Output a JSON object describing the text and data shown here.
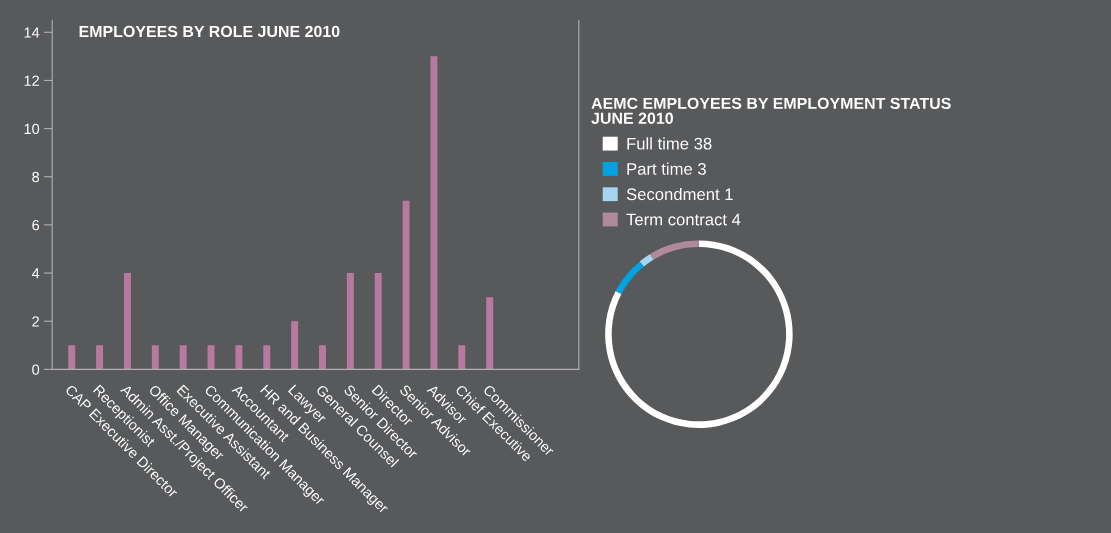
{
  "chart_data": [
    {
      "type": "bar",
      "title": "EMPLOYEES BY ROLE JUNE 2010",
      "categories": [
        "CAP Executive Director",
        "Receptionist",
        "Admin Asst./Project Officer",
        "Office Manager",
        "Executive Assistant",
        "Communication Manager",
        "Accountant",
        "HR and Business Manager",
        "Lawyer",
        "General Counsel",
        "Senior Director",
        "Director",
        "Senior Advisor",
        "Advisor",
        "Chief Executive",
        "Commissioner"
      ],
      "values": [
        1,
        1,
        4,
        1,
        1,
        1,
        1,
        1,
        2,
        1,
        4,
        4,
        7,
        13,
        1,
        3
      ],
      "color": "#b8799e",
      "ylim": [
        0,
        14.5
      ],
      "yticks": [
        0,
        2,
        4,
        6,
        8,
        10,
        12,
        14
      ],
      "grid": false
    },
    {
      "type": "donut",
      "title": "AEMC EMPLOYEES BY EMPLOYMENT STATUS\nJUNE 2010",
      "categories": [
        "Full time 38",
        "Part time 3",
        "Secondment 1",
        "Term contract 4"
      ],
      "values": [
        38,
        3,
        1,
        4
      ],
      "colors": [
        "#ffffff",
        "#00a3e0",
        "#a6d5f0",
        "#b08a9a"
      ],
      "legend": "top left"
    }
  ]
}
